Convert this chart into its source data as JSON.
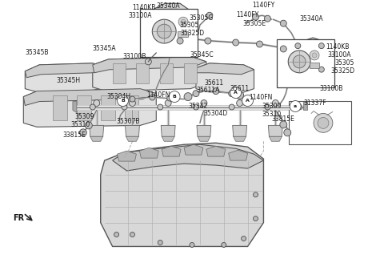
{
  "bg_color": "#ffffff",
  "line_color": "#4a4a4a",
  "text_color": "#1a1a1a",
  "figsize": [
    4.8,
    3.28
  ],
  "dpi": 100,
  "xlim": [
    0,
    480
  ],
  "ylim": [
    0,
    328
  ]
}
